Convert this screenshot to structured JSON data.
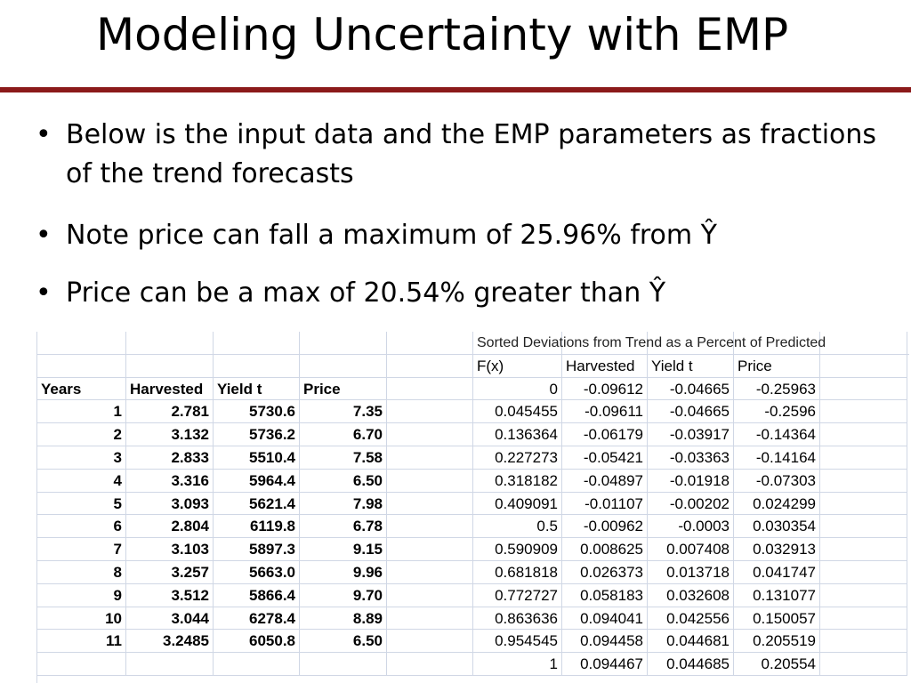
{
  "header": {
    "title": "Modeling Uncertainty with EMP"
  },
  "bullets": [
    "Below is the input data and the EMP parameters as fractions of the trend forecasts",
    "Note price can fall a maximum of 25.96% from Ŷ",
    "Price can be a max of 20.54% greater than Ŷ"
  ],
  "left_table": {
    "header": [
      "Years",
      "Harvested",
      "Yield t",
      "Price"
    ],
    "rows": [
      [
        "1",
        "2.781",
        "5730.6",
        "7.35"
      ],
      [
        "2",
        "3.132",
        "5736.2",
        "6.70"
      ],
      [
        "3",
        "2.833",
        "5510.4",
        "7.58"
      ],
      [
        "4",
        "3.316",
        "5964.4",
        "6.50"
      ],
      [
        "5",
        "3.093",
        "5621.4",
        "7.98"
      ],
      [
        "6",
        "2.804",
        "6119.8",
        "6.78"
      ],
      [
        "7",
        "3.103",
        "5897.3",
        "9.15"
      ],
      [
        "8",
        "3.257",
        "5663.0",
        "9.96"
      ],
      [
        "9",
        "3.512",
        "5866.4",
        "9.70"
      ],
      [
        "10",
        "3.044",
        "6278.4",
        "8.89"
      ],
      [
        "11",
        "3.2485",
        "6050.8",
        "6.50"
      ]
    ]
  },
  "right_table": {
    "caption": "Sorted Deviations from Trend as a Percent of Predicted",
    "header": [
      "F(x)",
      "Harvested",
      "Yield t",
      "Price"
    ],
    "rows": [
      [
        "0",
        "-0.09612",
        "-0.04665",
        "-0.25963"
      ],
      [
        "0.045455",
        "-0.09611",
        "-0.04665",
        "-0.2596"
      ],
      [
        "0.136364",
        "-0.06179",
        "-0.03917",
        "-0.14364"
      ],
      [
        "0.227273",
        "-0.05421",
        "-0.03363",
        "-0.14164"
      ],
      [
        "0.318182",
        "-0.04897",
        "-0.01918",
        "-0.07303"
      ],
      [
        "0.409091",
        "-0.01107",
        "-0.00202",
        "0.024299"
      ],
      [
        "0.5",
        "-0.00962",
        "-0.0003",
        "0.030354"
      ],
      [
        "0.590909",
        "0.008625",
        "0.007408",
        "0.032913"
      ],
      [
        "0.681818",
        "0.026373",
        "0.013718",
        "0.041747"
      ],
      [
        "0.772727",
        "0.058183",
        "0.032608",
        "0.131077"
      ],
      [
        "0.863636",
        "0.094041",
        "0.042556",
        "0.150057"
      ],
      [
        "0.954545",
        "0.094458",
        "0.044681",
        "0.205519"
      ],
      [
        "1",
        "0.094467",
        "0.044685",
        "0.20554"
      ]
    ]
  }
}
